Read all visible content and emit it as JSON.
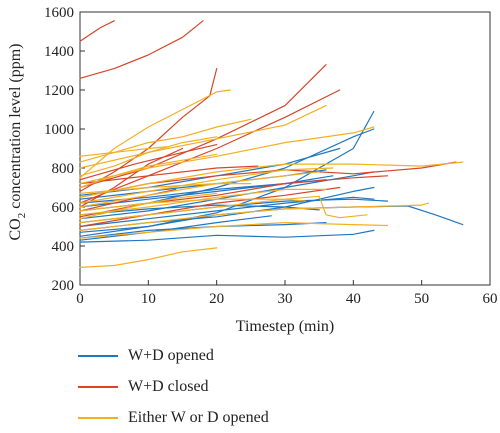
{
  "chart_data": {
    "type": "line",
    "xlabel": "Timestep (min)",
    "ylabel": "CO2 concentration level (ppm)",
    "ylabel_main": "CO",
    "ylabel_sub": "2",
    "ylabel_rest": " concentration level (ppm)",
    "xlim": [
      0,
      60
    ],
    "ylim": [
      200,
      1600
    ],
    "x_ticks": [
      "0",
      "10",
      "20",
      "30",
      "40",
      "50",
      "60"
    ],
    "y_ticks": [
      "200",
      "400",
      "600",
      "800",
      "1000",
      "1200",
      "1400",
      "1600"
    ],
    "grid": false,
    "legend_position": "below",
    "groups": [
      {
        "name": "W+D opened",
        "color": "#1f77c4",
        "lines": [
          [
            [
              0,
              420
            ],
            [
              10,
              430
            ],
            [
              20,
              455
            ],
            [
              30,
              445
            ],
            [
              40,
              460
            ],
            [
              43,
              480
            ]
          ],
          [
            [
              0,
              470
            ],
            [
              10,
              500
            ],
            [
              20,
              560
            ],
            [
              30,
              590
            ],
            [
              40,
              600
            ],
            [
              48,
              605
            ],
            [
              52,
              560
            ],
            [
              56,
              510
            ]
          ],
          [
            [
              0,
              560
            ],
            [
              10,
              590
            ],
            [
              20,
              610
            ],
            [
              30,
              600
            ],
            [
              35,
              585
            ]
          ],
          [
            [
              0,
              600
            ],
            [
              10,
              640
            ],
            [
              20,
              680
            ],
            [
              30,
              720
            ],
            [
              36,
              740
            ]
          ],
          [
            [
              0,
              640
            ],
            [
              10,
              680
            ],
            [
              20,
              720
            ],
            [
              30,
              760
            ],
            [
              36,
              790
            ]
          ],
          [
            [
              0,
              500
            ],
            [
              10,
              540
            ],
            [
              20,
              580
            ],
            [
              30,
              620
            ],
            [
              40,
              650
            ],
            [
              43,
              640
            ]
          ],
          [
            [
              0,
              540
            ],
            [
              10,
              580
            ],
            [
              20,
              640
            ],
            [
              30,
              700
            ],
            [
              40,
              760
            ],
            [
              43,
              780
            ]
          ],
          [
            [
              0,
              580
            ],
            [
              10,
              620
            ],
            [
              20,
              700
            ],
            [
              30,
              800
            ],
            [
              40,
              960
            ],
            [
              43,
              1000
            ]
          ],
          [
            [
              0,
              450
            ],
            [
              10,
              500
            ],
            [
              20,
              570
            ],
            [
              30,
              700
            ],
            [
              40,
              900
            ],
            [
              43,
              1090
            ]
          ],
          [
            [
              0,
              430
            ],
            [
              10,
              470
            ],
            [
              20,
              520
            ],
            [
              28,
              555
            ]
          ],
          [
            [
              0,
              480
            ],
            [
              10,
              520
            ],
            [
              20,
              550
            ],
            [
              30,
              600
            ],
            [
              40,
              680
            ],
            [
              43,
              700
            ]
          ],
          [
            [
              0,
              620
            ],
            [
              10,
              650
            ],
            [
              20,
              690
            ],
            [
              30,
              720
            ],
            [
              37,
              760
            ]
          ],
          [
            [
              0,
              520
            ],
            [
              10,
              560
            ],
            [
              20,
              600
            ],
            [
              30,
              630
            ],
            [
              40,
              640
            ],
            [
              45,
              630
            ]
          ],
          [
            [
              0,
              660
            ],
            [
              10,
              700
            ],
            [
              20,
              760
            ],
            [
              30,
              820
            ],
            [
              38,
              900
            ]
          ],
          [
            [
              0,
              440
            ],
            [
              10,
              480
            ],
            [
              20,
              500
            ],
            [
              30,
              510
            ],
            [
              36,
              520
            ]
          ]
        ]
      },
      {
        "name": "W+D closed",
        "color": "#d6452a",
        "lines": [
          [
            [
              0,
              1450
            ],
            [
              3,
              1520
            ],
            [
              5,
              1555
            ]
          ],
          [
            [
              0,
              1260
            ],
            [
              5,
              1310
            ],
            [
              10,
              1380
            ],
            [
              15,
              1470
            ],
            [
              18,
              1555
            ]
          ],
          [
            [
              0,
              680
            ],
            [
              5,
              780
            ],
            [
              10,
              900
            ],
            [
              15,
              1060
            ],
            [
              19,
              1170
            ],
            [
              20,
              1310
            ]
          ],
          [
            [
              0,
              700
            ],
            [
              10,
              800
            ],
            [
              20,
              950
            ],
            [
              30,
              1120
            ],
            [
              36,
              1330
            ]
          ],
          [
            [
              0,
              620
            ],
            [
              10,
              760
            ],
            [
              20,
              900
            ],
            [
              30,
              1060
            ],
            [
              38,
              1200
            ]
          ],
          [
            [
              0,
              650
            ],
            [
              10,
              720
            ],
            [
              20,
              760
            ],
            [
              30,
              790
            ],
            [
              40,
              770
            ],
            [
              50,
              800
            ],
            [
              55,
              830
            ]
          ],
          [
            [
              0,
              600
            ],
            [
              5,
              700
            ],
            [
              10,
              820
            ],
            [
              15,
              900
            ]
          ],
          [
            [
              0,
              550
            ],
            [
              10,
              620
            ],
            [
              20,
              660
            ],
            [
              30,
              720
            ],
            [
              40,
              750
            ],
            [
              45,
              760
            ]
          ],
          [
            [
              0,
              500
            ],
            [
              10,
              560
            ],
            [
              20,
              620
            ],
            [
              30,
              660
            ],
            [
              38,
              700
            ]
          ],
          [
            [
              0,
              740
            ],
            [
              8,
              820
            ],
            [
              15,
              880
            ],
            [
              20,
              920
            ]
          ],
          [
            [
              0,
              720
            ],
            [
              10,
              760
            ],
            [
              20,
              800
            ],
            [
              26,
              810
            ]
          ],
          [
            [
              0,
              580
            ],
            [
              5,
              620
            ],
            [
              10,
              660
            ],
            [
              14,
              690
            ]
          ]
        ]
      },
      {
        "name": "Either W or D opened",
        "color": "#f2b021",
        "lines": [
          [
            [
              0,
              290
            ],
            [
              5,
              300
            ],
            [
              10,
              330
            ],
            [
              15,
              370
            ],
            [
              20,
              390
            ]
          ],
          [
            [
              0,
              750
            ],
            [
              5,
              900
            ],
            [
              10,
              1010
            ],
            [
              15,
              1100
            ],
            [
              20,
              1190
            ],
            [
              22,
              1200
            ]
          ],
          [
            [
              0,
              830
            ],
            [
              5,
              880
            ],
            [
              10,
              930
            ],
            [
              15,
              960
            ],
            [
              20,
              1010
            ],
            [
              25,
              1050
            ]
          ],
          [
            [
              0,
              800
            ],
            [
              10,
              880
            ],
            [
              20,
              950
            ],
            [
              30,
              1020
            ],
            [
              36,
              1120
            ]
          ],
          [
            [
              0,
              720
            ],
            [
              10,
              800
            ],
            [
              20,
              860
            ],
            [
              30,
              930
            ],
            [
              40,
              980
            ],
            [
              43,
              1010
            ]
          ],
          [
            [
              0,
              650
            ],
            [
              10,
              720
            ],
            [
              20,
              780
            ],
            [
              30,
              820
            ],
            [
              40,
              820
            ],
            [
              50,
              810
            ],
            [
              56,
              830
            ]
          ],
          [
            [
              0,
              600
            ],
            [
              10,
              660
            ],
            [
              20,
              720
            ],
            [
              30,
              760
            ],
            [
              35,
              780
            ]
          ],
          [
            [
              0,
              560
            ],
            [
              10,
              600
            ],
            [
              20,
              650
            ],
            [
              30,
              690
            ],
            [
              36,
              690
            ]
          ],
          [
            [
              0,
              520
            ],
            [
              10,
              560
            ],
            [
              20,
              600
            ],
            [
              30,
              640
            ],
            [
              35,
              655
            ],
            [
              36,
              560
            ],
            [
              38,
              545
            ],
            [
              42,
              560
            ]
          ],
          [
            [
              0,
              480
            ],
            [
              10,
              520
            ],
            [
              20,
              560
            ],
            [
              30,
              590
            ],
            [
              40,
              600
            ],
            [
              50,
              610
            ],
            [
              51,
              620
            ]
          ],
          [
            [
              0,
              440
            ],
            [
              10,
              470
            ],
            [
              20,
              500
            ],
            [
              30,
              520
            ],
            [
              40,
              510
            ],
            [
              45,
              505
            ]
          ],
          [
            [
              0,
              700
            ],
            [
              5,
              760
            ],
            [
              10,
              810
            ],
            [
              15,
              840
            ],
            [
              20,
              870
            ]
          ],
          [
            [
              0,
              760
            ],
            [
              5,
              810
            ],
            [
              10,
              880
            ],
            [
              15,
              930
            ],
            [
              20,
              960
            ]
          ],
          [
            [
              0,
              620
            ],
            [
              10,
              680
            ],
            [
              20,
              740
            ],
            [
              30,
              790
            ],
            [
              37,
              800
            ]
          ],
          [
            [
              0,
              580
            ],
            [
              10,
              620
            ],
            [
              20,
              640
            ],
            [
              30,
              640
            ],
            [
              33,
              630
            ]
          ],
          [
            [
              0,
              540
            ],
            [
              5,
              580
            ],
            [
              10,
              620
            ],
            [
              15,
              650
            ],
            [
              20,
              670
            ]
          ],
          [
            [
              0,
              670
            ],
            [
              10,
              700
            ],
            [
              20,
              720
            ],
            [
              25,
              720
            ]
          ],
          [
            [
              0,
              860
            ],
            [
              5,
              880
            ],
            [
              10,
              900
            ],
            [
              13,
              910
            ]
          ]
        ]
      }
    ]
  }
}
